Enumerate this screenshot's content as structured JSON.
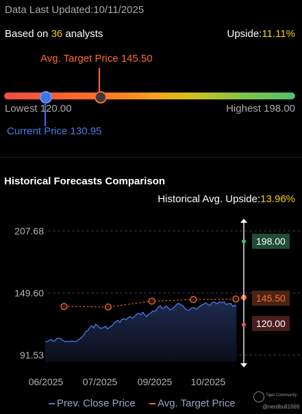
{
  "header": {
    "updated": "Data Last Updated:10/11/2025",
    "based_prefix": "Based on ",
    "analyst_count": "36",
    "based_suffix": " analysts",
    "upside_label": "Upside:",
    "upside_value": "11.11%"
  },
  "range": {
    "avg_target_label": "Avg. Target Price 145.50",
    "lowest_label": "Lowest 120.00",
    "highest_label": "Highest 198.00",
    "current_label": "Current Price 130.95",
    "lowest": 120.0,
    "highest": 198.0,
    "avg_target": 145.5,
    "current": 130.95
  },
  "history": {
    "title": "Historical Forecasts Comparison",
    "avg_upside_label": "Historical Avg. Upside:",
    "avg_upside_value": "13.96%",
    "tag_high": "198.00",
    "tag_avg": "145.50",
    "tag_low": "120.00",
    "legend_close": "Prev. Close Price",
    "legend_target": "Avg. Target Price",
    "watermark_brand": "Tiger Community",
    "watermark_user": "@nerdbull1669"
  },
  "chart_data": {
    "type": "line",
    "y_ticks": [
      "207.68",
      "149.60",
      "91.53"
    ],
    "x_ticks": [
      "06/2025",
      "07/2025",
      "09/2025",
      "10/2025"
    ],
    "ylim": [
      91.53,
      207.68
    ],
    "series": [
      {
        "name": "Prev. Close Price",
        "color": "#4a7be6",
        "points": [
          [
            0.0,
            104.5
          ],
          [
            0.01,
            104.0
          ],
          [
            0.022,
            105.5
          ],
          [
            0.032,
            106.0
          ],
          [
            0.04,
            104.5
          ],
          [
            0.05,
            105.0
          ],
          [
            0.058,
            107.0
          ],
          [
            0.068,
            107.5
          ],
          [
            0.08,
            106.5
          ],
          [
            0.09,
            105.0
          ],
          [
            0.1,
            104.0
          ],
          [
            0.112,
            104.5
          ],
          [
            0.122,
            104.0
          ],
          [
            0.134,
            104.8
          ],
          [
            0.146,
            104.0
          ],
          [
            0.158,
            104.5
          ],
          [
            0.168,
            106.0
          ],
          [
            0.18,
            107.5
          ],
          [
            0.192,
            109.5
          ],
          [
            0.204,
            113.5
          ],
          [
            0.214,
            114.5
          ],
          [
            0.224,
            117.0
          ],
          [
            0.234,
            119.0
          ],
          [
            0.244,
            117.0
          ],
          [
            0.254,
            120.5
          ],
          [
            0.264,
            119.0
          ],
          [
            0.274,
            117.0
          ],
          [
            0.284,
            116.5
          ],
          [
            0.294,
            117.5
          ],
          [
            0.304,
            118.5
          ],
          [
            0.314,
            116.0
          ],
          [
            0.324,
            117.5
          ],
          [
            0.336,
            119.0
          ],
          [
            0.346,
            121.0
          ],
          [
            0.356,
            123.0
          ],
          [
            0.366,
            124.0
          ],
          [
            0.376,
            122.0
          ],
          [
            0.386,
            125.0
          ],
          [
            0.398,
            125.5
          ],
          [
            0.408,
            124.5
          ],
          [
            0.42,
            127.0
          ],
          [
            0.43,
            127.5
          ],
          [
            0.44,
            126.0
          ],
          [
            0.452,
            128.0
          ],
          [
            0.462,
            130.0
          ],
          [
            0.472,
            130.5
          ],
          [
            0.482,
            129.5
          ],
          [
            0.492,
            131.5
          ],
          [
            0.502,
            129.0
          ],
          [
            0.512,
            127.5
          ],
          [
            0.522,
            130.0
          ],
          [
            0.532,
            131.0
          ],
          [
            0.542,
            133.0
          ],
          [
            0.552,
            132.0
          ],
          [
            0.562,
            134.5
          ],
          [
            0.572,
            137.0
          ],
          [
            0.58,
            137.5
          ],
          [
            0.59,
            135.0
          ],
          [
            0.6,
            136.0
          ],
          [
            0.61,
            137.5
          ],
          [
            0.62,
            135.5
          ],
          [
            0.63,
            134.0
          ],
          [
            0.642,
            135.0
          ],
          [
            0.652,
            137.0
          ],
          [
            0.662,
            139.0
          ],
          [
            0.672,
            140.0
          ],
          [
            0.684,
            138.5
          ],
          [
            0.694,
            137.5
          ],
          [
            0.704,
            135.0
          ],
          [
            0.712,
            134.0
          ],
          [
            0.724,
            133.5
          ],
          [
            0.736,
            135.5
          ],
          [
            0.748,
            136.0
          ],
          [
            0.76,
            134.5
          ],
          [
            0.772,
            136.0
          ],
          [
            0.784,
            138.0
          ],
          [
            0.796,
            139.0
          ],
          [
            0.808,
            140.5
          ],
          [
            0.818,
            139.0
          ],
          [
            0.83,
            138.0
          ],
          [
            0.842,
            141.0
          ],
          [
            0.854,
            141.0
          ],
          [
            0.866,
            139.5
          ],
          [
            0.878,
            141.5
          ],
          [
            0.89,
            140.5
          ],
          [
            0.9,
            141.5
          ],
          [
            0.91,
            139.0
          ],
          [
            0.922,
            139.5
          ],
          [
            0.934,
            140.0
          ],
          [
            0.946,
            137.0
          ],
          [
            0.954,
            138.5
          ],
          [
            0.963,
            137.0
          ]
        ]
      },
      {
        "name": "Avg. Target Price",
        "color": "#ff6b2a",
        "points": [
          [
            0.095,
            137.0
          ],
          [
            0.317,
            136.5
          ],
          [
            0.537,
            142.0
          ],
          [
            0.746,
            143.5
          ],
          [
            0.96,
            144.0
          ],
          [
            1.0,
            145.5
          ]
        ]
      }
    ],
    "guide_points": {
      "high": 198.0,
      "avg": 145.5,
      "low": 120.0
    }
  }
}
